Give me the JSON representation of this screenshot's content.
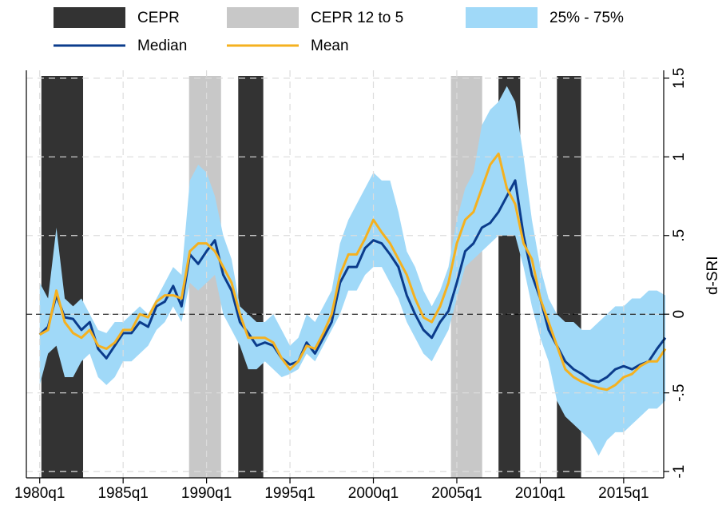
{
  "chart_data": {
    "type": "line",
    "y_label": "d-SRI",
    "x": [
      1980.0,
      1980.5,
      1981.0,
      1981.5,
      1982.0,
      1982.5,
      1983.0,
      1983.5,
      1984.0,
      1984.5,
      1985.0,
      1985.5,
      1986.0,
      1986.5,
      1987.0,
      1987.5,
      1988.0,
      1988.5,
      1989.0,
      1989.5,
      1990.0,
      1990.5,
      1991.0,
      1991.5,
      1992.0,
      1992.5,
      1993.0,
      1993.5,
      1994.0,
      1994.5,
      1995.0,
      1995.5,
      1996.0,
      1996.5,
      1997.0,
      1997.5,
      1998.0,
      1998.5,
      1999.0,
      1999.5,
      2000.0,
      2000.5,
      2001.0,
      2001.5,
      2002.0,
      2002.5,
      2003.0,
      2003.5,
      2004.0,
      2004.5,
      2005.0,
      2005.5,
      2006.0,
      2006.5,
      2007.0,
      2007.5,
      2008.0,
      2008.5,
      2009.0,
      2009.5,
      2010.0,
      2010.5,
      2011.0,
      2011.5,
      2012.0,
      2012.5,
      2013.0,
      2013.5,
      2014.0,
      2014.5,
      2015.0,
      2015.5,
      2016.0,
      2016.5,
      2017.0,
      2017.5
    ],
    "shaded_periods": [
      {
        "name": "CEPR",
        "color": "#333333",
        "ranges": [
          [
            1980.1,
            1982.6
          ],
          [
            1991.9,
            1993.4
          ],
          [
            2007.5,
            2008.8
          ],
          [
            2011.0,
            2012.45
          ]
        ]
      },
      {
        "name": "CEPR 12 to 5",
        "color": "#c8c8c8",
        "ranges": [
          [
            1988.95,
            1990.87
          ],
          [
            2004.65,
            2006.52
          ]
        ]
      }
    ],
    "band": {
      "name": "25% - 75%",
      "color": "#a0d9f8",
      "upper": [
        0.2,
        0.1,
        0.55,
        0.1,
        0.05,
        0.1,
        0.0,
        -0.1,
        -0.12,
        -0.05,
        -0.05,
        0.0,
        0.05,
        0.0,
        0.1,
        0.2,
        0.3,
        0.25,
        0.85,
        0.95,
        0.9,
        0.75,
        0.5,
        0.35,
        0.05,
        0.0,
        -0.05,
        -0.05,
        0.0,
        -0.1,
        -0.2,
        -0.15,
        0.0,
        -0.05,
        0.05,
        0.15,
        0.45,
        0.6,
        0.7,
        0.8,
        0.9,
        0.85,
        0.85,
        0.65,
        0.4,
        0.3,
        0.15,
        0.05,
        0.15,
        0.3,
        0.6,
        0.8,
        0.9,
        1.2,
        1.3,
        1.35,
        1.45,
        1.35,
        1.0,
        0.6,
        0.3,
        0.1,
        0.0,
        -0.05,
        -0.05,
        -0.1,
        -0.1,
        -0.05,
        0.0,
        0.05,
        0.05,
        0.1,
        0.1,
        0.15,
        0.15,
        0.12
      ],
      "lower": [
        -0.45,
        -0.25,
        -0.2,
        -0.4,
        -0.4,
        -0.3,
        -0.25,
        -0.4,
        -0.45,
        -0.4,
        -0.3,
        -0.3,
        -0.25,
        -0.2,
        -0.1,
        -0.05,
        0.05,
        -0.05,
        0.2,
        0.15,
        0.2,
        0.25,
        0.0,
        -0.1,
        -0.2,
        -0.35,
        -0.35,
        -0.3,
        -0.35,
        -0.4,
        -0.38,
        -0.35,
        -0.25,
        -0.3,
        -0.2,
        -0.1,
        0.0,
        0.15,
        0.15,
        0.25,
        0.3,
        0.3,
        0.2,
        0.1,
        -0.05,
        -0.15,
        -0.25,
        -0.3,
        -0.2,
        -0.1,
        0.1,
        0.3,
        0.35,
        0.4,
        0.45,
        0.5,
        0.5,
        0.5,
        0.3,
        0.05,
        -0.15,
        -0.3,
        -0.55,
        -0.65,
        -0.7,
        -0.75,
        -0.8,
        -0.9,
        -0.8,
        -0.75,
        -0.75,
        -0.7,
        -0.65,
        -0.6,
        -0.6,
        -0.55
      ]
    },
    "series": [
      {
        "name": "Median",
        "color": "#0b3c8c",
        "values": [
          -0.13,
          -0.08,
          0.12,
          -0.02,
          -0.03,
          -0.1,
          -0.05,
          -0.22,
          -0.28,
          -0.2,
          -0.12,
          -0.12,
          -0.05,
          -0.08,
          0.05,
          0.08,
          0.18,
          0.05,
          0.38,
          0.32,
          0.4,
          0.47,
          0.25,
          0.15,
          -0.05,
          -0.12,
          -0.2,
          -0.18,
          -0.2,
          -0.28,
          -0.32,
          -0.3,
          -0.18,
          -0.25,
          -0.15,
          -0.05,
          0.2,
          0.3,
          0.3,
          0.42,
          0.47,
          0.45,
          0.38,
          0.3,
          0.12,
          0.0,
          -0.1,
          -0.15,
          -0.05,
          0.02,
          0.2,
          0.4,
          0.45,
          0.55,
          0.58,
          0.65,
          0.75,
          0.85,
          0.5,
          0.25,
          0.1,
          -0.1,
          -0.2,
          -0.3,
          -0.35,
          -0.38,
          -0.42,
          -0.43,
          -0.4,
          -0.35,
          -0.33,
          -0.35,
          -0.32,
          -0.3,
          -0.22,
          -0.15
        ]
      },
      {
        "name": "Mean",
        "color": "#f5b11f",
        "values": [
          -0.13,
          -0.1,
          0.15,
          -0.05,
          -0.12,
          -0.15,
          -0.1,
          -0.2,
          -0.22,
          -0.18,
          -0.1,
          -0.1,
          0.0,
          -0.02,
          0.08,
          0.12,
          0.12,
          0.1,
          0.4,
          0.45,
          0.45,
          0.4,
          0.3,
          0.2,
          0.0,
          -0.15,
          -0.15,
          -0.15,
          -0.18,
          -0.28,
          -0.35,
          -0.3,
          -0.2,
          -0.22,
          -0.12,
          0.0,
          0.25,
          0.38,
          0.38,
          0.48,
          0.6,
          0.52,
          0.45,
          0.35,
          0.25,
          0.1,
          -0.02,
          -0.05,
          0.05,
          0.2,
          0.45,
          0.6,
          0.65,
          0.8,
          0.95,
          1.02,
          0.8,
          0.7,
          0.45,
          0.35,
          0.1,
          -0.05,
          -0.2,
          -0.35,
          -0.4,
          -0.43,
          -0.45,
          -0.47,
          -0.48,
          -0.45,
          -0.4,
          -0.38,
          -0.33,
          -0.3,
          -0.3,
          -0.22
        ]
      }
    ],
    "reference_line": 0,
    "xlim": [
      1979.2,
      2017.4
    ],
    "ylim": [
      -1.04,
      1.55
    ],
    "xticks": [
      {
        "value": 1980,
        "label": "1980q1"
      },
      {
        "value": 1985,
        "label": "1985q1"
      },
      {
        "value": 1990,
        "label": "1990q1"
      },
      {
        "value": 1995,
        "label": "1995q1"
      },
      {
        "value": 2000,
        "label": "2000q1"
      },
      {
        "value": 2005,
        "label": "2005q1"
      },
      {
        "value": 2010,
        "label": "2010q1"
      },
      {
        "value": 2015,
        "label": "2015q1"
      }
    ],
    "yticks": [
      -1,
      {
        "value": -0.5,
        "label": "-.5"
      },
      0,
      {
        "value": 0.5,
        "label": ".5"
      },
      1,
      1.5
    ],
    "grid": true,
    "y_axis_side": "right"
  }
}
